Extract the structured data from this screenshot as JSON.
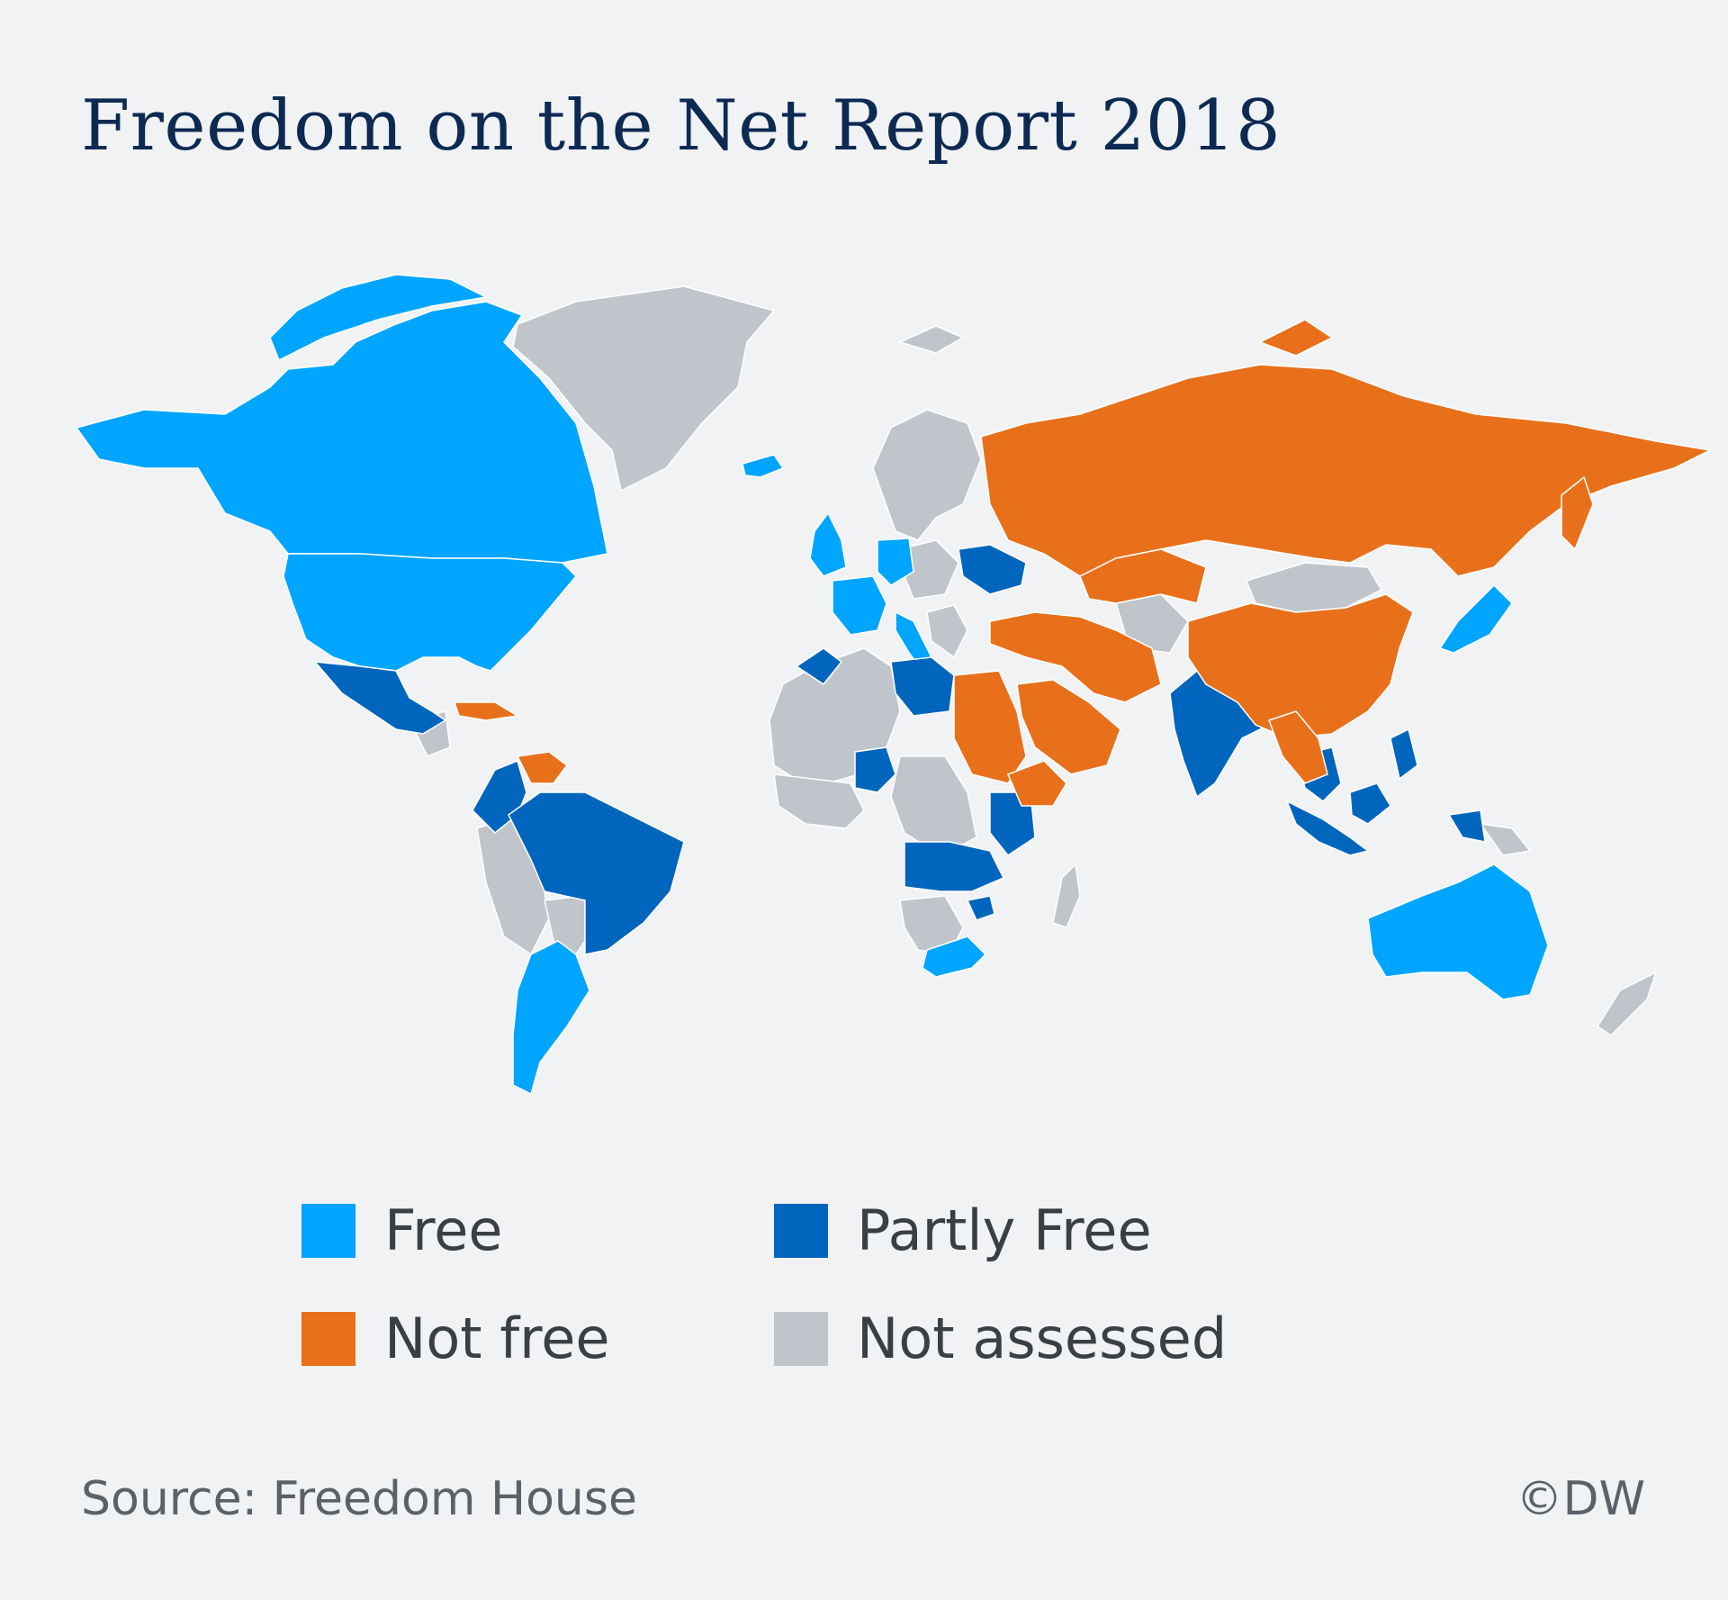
{
  "title": "Freedom on the Net Report 2018",
  "legend": [
    {
      "label": "Free",
      "color": "#00a5ff"
    },
    {
      "label": "Partly Free",
      "color": "#0065bd"
    },
    {
      "label": "Not free",
      "color": "#e8701b"
    },
    {
      "label": "Not assessed",
      "color": "#c0c5cc"
    }
  ],
  "footer": {
    "source": "Source:  Freedom House",
    "copyright": "©DW"
  }
}
